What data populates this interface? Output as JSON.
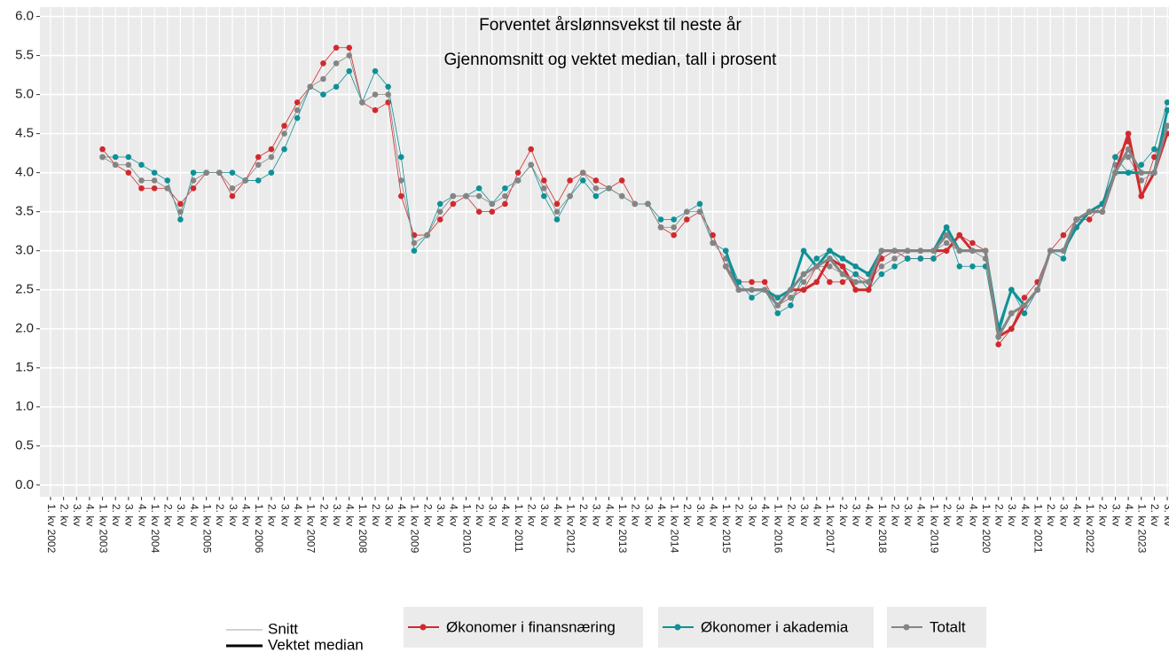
{
  "chart_data": {
    "type": "line",
    "title": "Forventet årslønnsvekst til neste år",
    "subtitle": "Gjennomsnitt og vektet median, tall i prosent",
    "categories": [
      "1. kv 2002",
      "2. kv",
      "3. kv",
      "4. kv",
      "1. kv 2003",
      "2. kv",
      "3. kv",
      "4. kv",
      "1. kv 2004",
      "2. kv",
      "3. kv",
      "4. kv",
      "1. kv 2005",
      "2. kv",
      "3. kv",
      "4. kv",
      "1. kv 2006",
      "2. kv",
      "3. kv",
      "4. kv",
      "1. kv 2007",
      "2. kv",
      "3. kv",
      "4. kv",
      "1. kv 2008",
      "2. kv",
      "3. kv",
      "4. kv",
      "1. kv 2009",
      "2. kv",
      "3. kv",
      "4. kv",
      "1. kv 2010",
      "2. kv",
      "3. kv",
      "4. kv",
      "1. kv 2011",
      "2. kv",
      "3. kv",
      "4. kv",
      "1. kv 2012",
      "2. kv",
      "3. kv",
      "4. kv",
      "1. kv 2013",
      "2. kv",
      "3. kv",
      "4. kv",
      "1. kv 2014",
      "2. kv",
      "3. kv",
      "4. kv",
      "1. kv 2015",
      "2. kv",
      "3. kv",
      "4. kv",
      "1. kv 2016",
      "2. kv",
      "3. kv",
      "4. kv",
      "1. kv 2017",
      "2. kv",
      "3. kv",
      "4. kv",
      "1. kv 2018",
      "2. kv",
      "3. kv",
      "4. kv",
      "1. kv 2019",
      "2. kv",
      "3. kv",
      "4. kv",
      "1. kv 2020",
      "2. kv",
      "3. kv",
      "4. kv",
      "1. kv 2021",
      "2. kv",
      "3. kv",
      "4. kv",
      "1. kv 2022",
      "2. kv",
      "3. kv",
      "4. kv",
      "1. kv 2023",
      "2. kv",
      "3. kv"
    ],
    "ylim": [
      -0.15,
      6.12
    ],
    "yticks": [
      {
        "value": 0,
        "label": "0.0"
      },
      0.5,
      {
        "value": 1,
        "label": "1.0"
      },
      1.5,
      {
        "value": 2,
        "label": "2.0"
      },
      2.5,
      {
        "value": 3,
        "label": "3.0"
      },
      3.5,
      {
        "value": 4,
        "label": "4.0"
      },
      4.5,
      {
        "value": 5,
        "label": "5.0"
      },
      5.5,
      {
        "value": 6,
        "label": "6.0"
      }
    ],
    "grid": true,
    "groups": [
      {
        "name": "Økonomer i finansnæring",
        "color": "#d02a2e"
      },
      {
        "name": "Økonomer i akademia",
        "color": "#0f9196"
      },
      {
        "name": "Totalt",
        "color": "#858585"
      }
    ],
    "styles": [
      {
        "name": "Snitt",
        "width": 0.8
      },
      {
        "name": "Vektet median",
        "width": 3
      }
    ],
    "series": [
      {
        "group": 0,
        "style": 0,
        "values": [
          null,
          null,
          null,
          null,
          4.3,
          4.1,
          4.0,
          3.8,
          3.8,
          3.8,
          3.6,
          3.8,
          4.0,
          4.0,
          3.7,
          3.9,
          4.2,
          4.3,
          4.6,
          4.9,
          5.1,
          5.4,
          5.6,
          5.6,
          4.9,
          4.8,
          4.9,
          3.7,
          3.2,
          3.2,
          3.4,
          3.6,
          3.7,
          3.5,
          3.5,
          3.6,
          4.0,
          4.3,
          3.9,
          3.6,
          3.9,
          4.0,
          3.9,
          3.8,
          3.9,
          3.6,
          3.6,
          3.3,
          3.2,
          3.4,
          3.5,
          3.2,
          2.8,
          2.6,
          2.6,
          2.6,
          2.3,
          2.4,
          2.5,
          2.8,
          2.6,
          2.6,
          2.7,
          2.6,
          2.9,
          3.0,
          2.9,
          2.9,
          2.9,
          3.0,
          3.2,
          3.1,
          3.0,
          1.8,
          2.0,
          2.4,
          2.6,
          3.0,
          3.2,
          3.4,
          3.4,
          3.6,
          4.2,
          4.4,
          3.7,
          4.2,
          4.6
        ]
      },
      {
        "group": 1,
        "style": 0,
        "values": [
          null,
          null,
          null,
          null,
          4.2,
          4.2,
          4.2,
          4.1,
          4.0,
          3.9,
          3.4,
          4.0,
          4.0,
          4.0,
          4.0,
          3.9,
          3.9,
          4.0,
          4.3,
          4.7,
          5.1,
          5.0,
          5.1,
          5.3,
          4.9,
          5.3,
          5.1,
          4.2,
          3.0,
          3.2,
          3.6,
          3.7,
          3.7,
          3.8,
          3.6,
          3.8,
          3.9,
          4.1,
          3.7,
          3.4,
          3.7,
          3.9,
          3.7,
          3.8,
          3.7,
          3.6,
          3.6,
          3.4,
          3.4,
          3.5,
          3.6,
          3.1,
          3.0,
          2.6,
          2.4,
          2.5,
          2.2,
          2.3,
          2.7,
          2.9,
          3.0,
          2.8,
          2.7,
          2.5,
          2.7,
          2.8,
          2.9,
          2.9,
          2.9,
          3.3,
          2.8,
          2.8,
          2.8,
          1.9,
          2.5,
          2.2,
          2.5,
          3.0,
          2.9,
          3.4,
          3.5,
          3.6,
          4.2,
          4.0,
          4.1,
          4.3,
          4.9
        ]
      },
      {
        "group": 2,
        "style": 0,
        "values": [
          null,
          null,
          null,
          null,
          4.2,
          4.1,
          4.1,
          3.9,
          3.9,
          3.8,
          3.5,
          3.9,
          4.0,
          4.0,
          3.8,
          3.9,
          4.1,
          4.2,
          4.5,
          4.8,
          5.1,
          5.2,
          5.4,
          5.5,
          4.9,
          5.0,
          5.0,
          3.9,
          3.1,
          3.2,
          3.5,
          3.7,
          3.7,
          3.7,
          3.6,
          3.7,
          3.9,
          4.1,
          3.8,
          3.5,
          3.7,
          4.0,
          3.8,
          3.8,
          3.7,
          3.6,
          3.6,
          3.3,
          3.3,
          3.5,
          3.5,
          3.1,
          2.9,
          2.5,
          2.5,
          2.5,
          2.3,
          2.4,
          2.6,
          2.8,
          2.8,
          2.7,
          2.6,
          2.6,
          2.8,
          2.9,
          3.0,
          3.0,
          3.0,
          3.1,
          3.0,
          3.0,
          2.9,
          1.9,
          2.2,
          2.3,
          2.5,
          3.0,
          3.0,
          3.4,
          3.5,
          3.5,
          4.1,
          4.2,
          3.9,
          4.0,
          4.8
        ]
      },
      {
        "group": 0,
        "style": 1,
        "values": [
          null,
          null,
          null,
          null,
          null,
          null,
          null,
          null,
          null,
          null,
          null,
          null,
          null,
          null,
          null,
          null,
          null,
          null,
          null,
          null,
          null,
          null,
          null,
          null,
          null,
          null,
          null,
          null,
          null,
          null,
          null,
          null,
          null,
          null,
          null,
          null,
          null,
          null,
          null,
          null,
          null,
          null,
          null,
          null,
          null,
          null,
          null,
          null,
          null,
          null,
          null,
          null,
          2.8,
          2.5,
          2.5,
          2.5,
          2.3,
          2.5,
          2.5,
          2.6,
          2.9,
          2.8,
          2.5,
          2.5,
          3.0,
          3.0,
          3.0,
          3.0,
          3.0,
          3.0,
          3.2,
          3.0,
          3.0,
          1.9,
          2.0,
          2.3,
          2.5,
          3.0,
          3.0,
          3.3,
          3.5,
          3.5,
          4.0,
          4.5,
          3.7,
          4.0,
          4.5
        ]
      },
      {
        "group": 1,
        "style": 1,
        "values": [
          null,
          null,
          null,
          null,
          null,
          null,
          null,
          null,
          null,
          null,
          null,
          null,
          null,
          null,
          null,
          null,
          null,
          null,
          null,
          null,
          null,
          null,
          null,
          null,
          null,
          null,
          null,
          null,
          null,
          null,
          null,
          null,
          null,
          null,
          null,
          null,
          null,
          null,
          null,
          null,
          null,
          null,
          null,
          null,
          null,
          null,
          null,
          null,
          null,
          null,
          null,
          null,
          3.0,
          2.5,
          2.5,
          2.5,
          2.4,
          2.5,
          3.0,
          2.8,
          3.0,
          2.9,
          2.8,
          2.7,
          3.0,
          3.0,
          3.0,
          3.0,
          3.0,
          3.3,
          3.0,
          3.0,
          3.0,
          2.0,
          2.5,
          2.3,
          2.5,
          3.0,
          3.0,
          3.3,
          3.5,
          3.6,
          4.0,
          4.0,
          4.0,
          4.0,
          4.8
        ]
      },
      {
        "group": 2,
        "style": 1,
        "values": [
          null,
          null,
          null,
          null,
          null,
          null,
          null,
          null,
          null,
          null,
          null,
          null,
          null,
          null,
          null,
          null,
          null,
          null,
          null,
          null,
          null,
          null,
          null,
          null,
          null,
          null,
          null,
          null,
          null,
          null,
          null,
          null,
          null,
          null,
          null,
          null,
          null,
          null,
          null,
          null,
          null,
          null,
          null,
          null,
          null,
          null,
          null,
          null,
          null,
          null,
          null,
          null,
          2.8,
          2.5,
          2.5,
          2.5,
          2.3,
          2.5,
          2.7,
          2.8,
          2.9,
          2.7,
          2.6,
          2.6,
          3.0,
          3.0,
          3.0,
          3.0,
          3.0,
          3.2,
          3.0,
          3.0,
          3.0,
          1.9,
          2.2,
          2.3,
          2.5,
          3.0,
          3.0,
          3.4,
          3.5,
          3.5,
          4.0,
          4.3,
          4.0,
          4.0,
          4.6
        ]
      }
    ]
  }
}
